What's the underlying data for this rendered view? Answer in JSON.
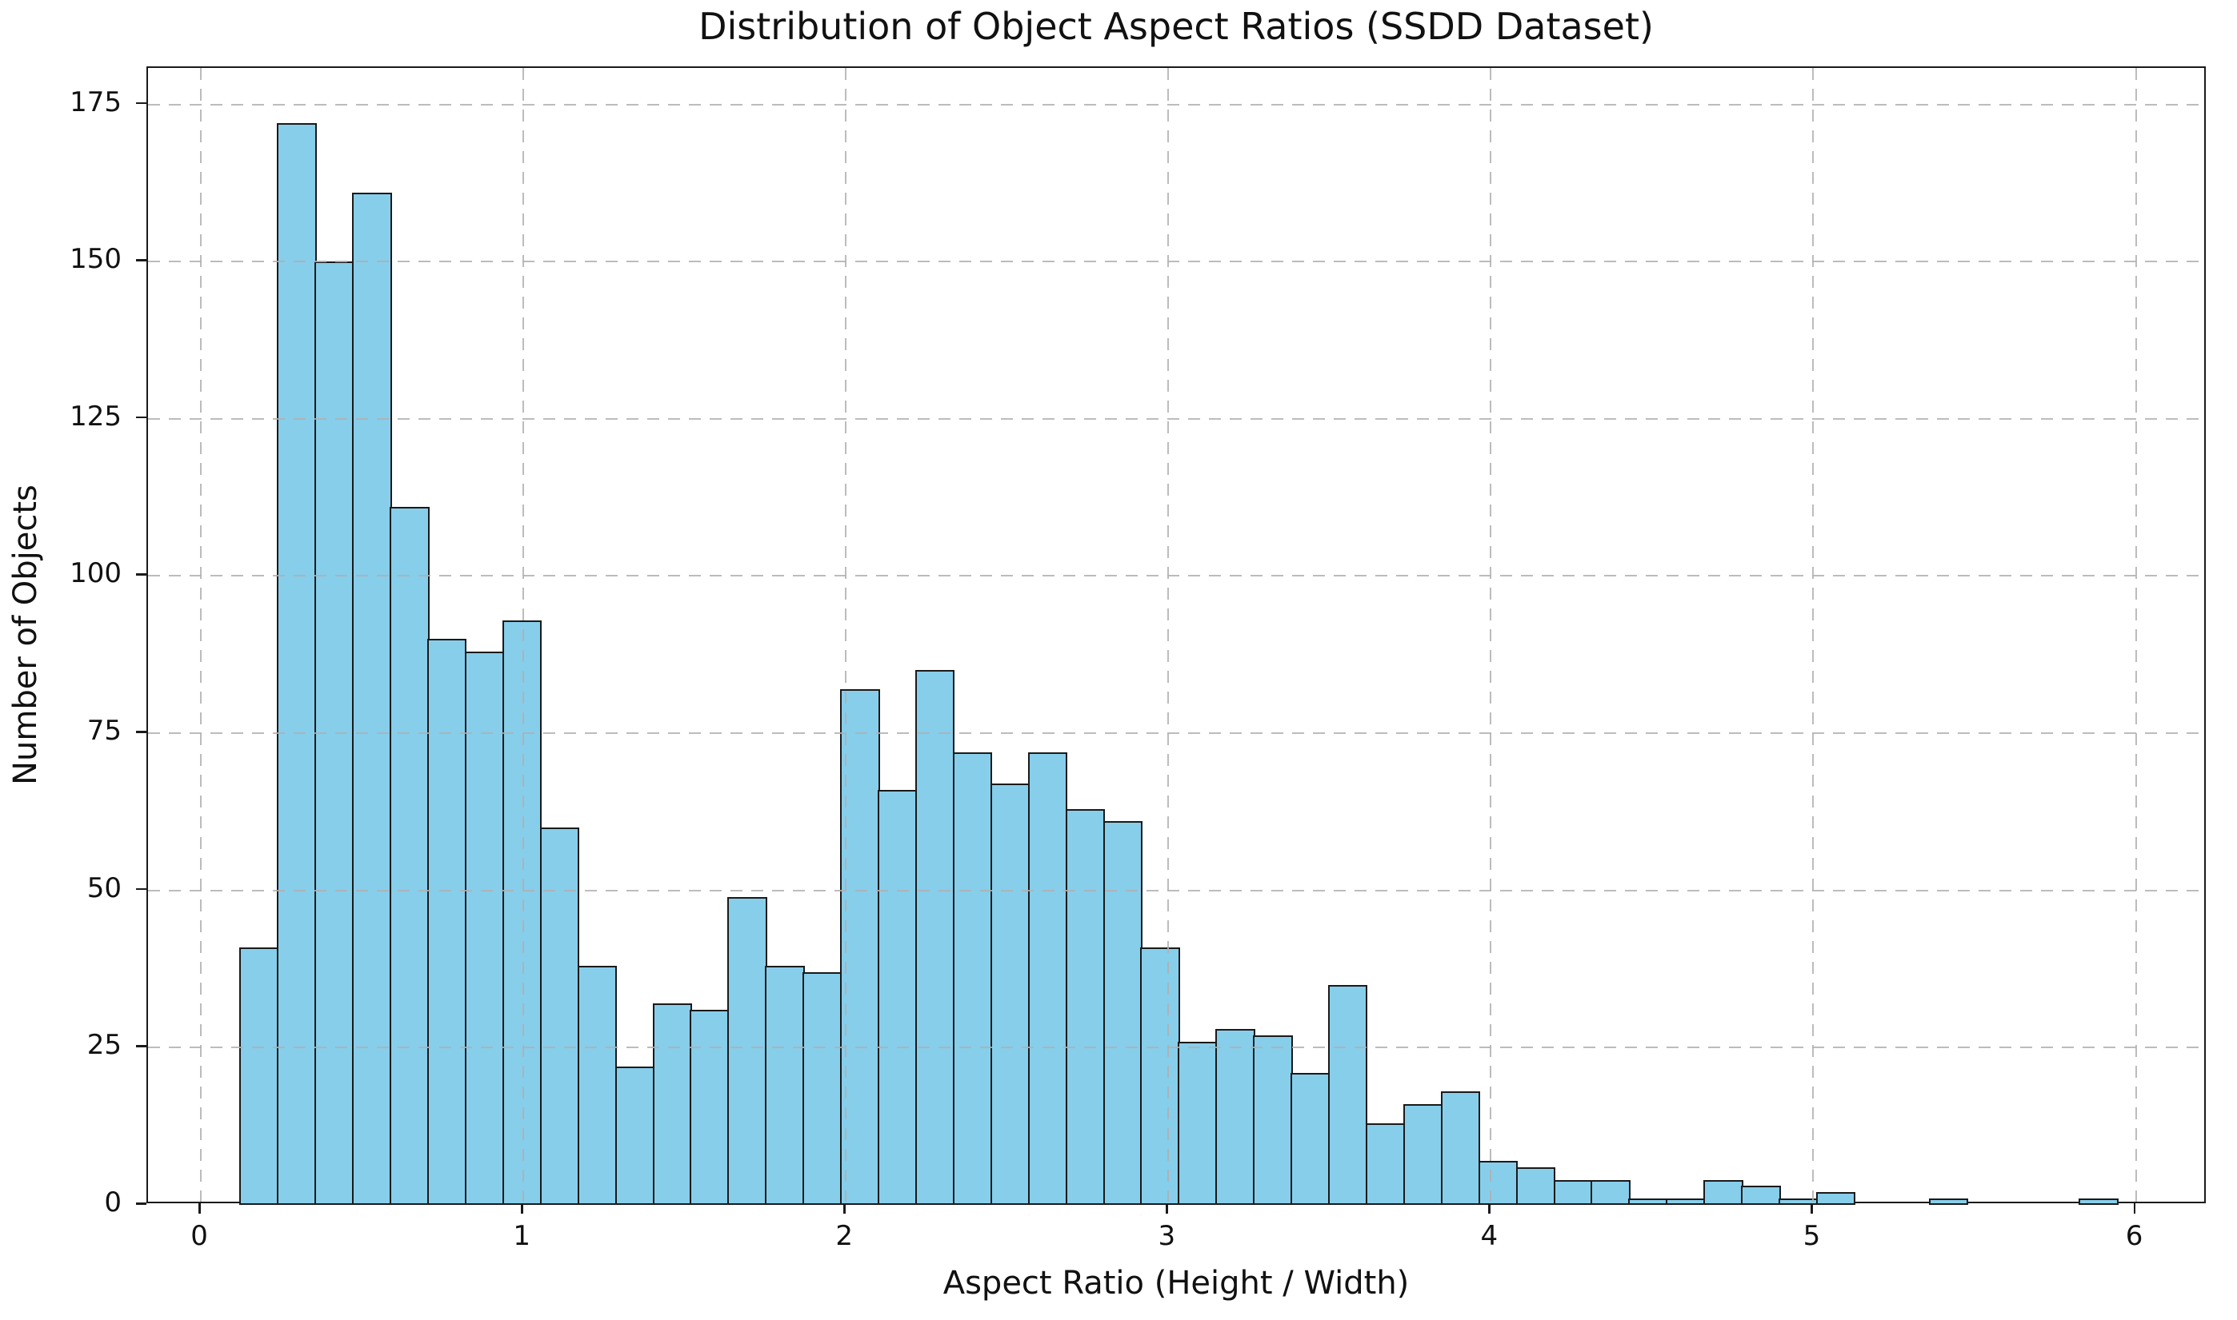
{
  "title": "Distribution of Object Aspect Ratios (SSDD Dataset)",
  "xlabel": "Aspect Ratio (Height / Width)",
  "ylabel": "Number of Objects",
  "x_ticks": [
    "0",
    "1",
    "2",
    "3",
    "4",
    "5",
    "6"
  ],
  "y_ticks": [
    "0",
    "25",
    "50",
    "75",
    "100",
    "125",
    "150",
    "175"
  ],
  "colors": {
    "bar_fill": "#87CEEB",
    "bar_edge": "#1a1a1a",
    "grid": "#b0b0b0",
    "spine": "#1a1a1a",
    "background": "#ffffff",
    "text": "#111111"
  },
  "chart_data": {
    "type": "bar",
    "subtype": "histogram",
    "title": "Distribution of Object Aspect Ratios (SSDD Dataset)",
    "xlabel": "Aspect Ratio (Height / Width)",
    "ylabel": "Number of Objects",
    "bin_start": 0.12,
    "bin_width": 0.1164,
    "counts": [
      41,
      172,
      150,
      161,
      111,
      90,
      88,
      93,
      60,
      38,
      22,
      32,
      31,
      49,
      38,
      37,
      82,
      66,
      85,
      72,
      67,
      72,
      63,
      61,
      41,
      26,
      28,
      27,
      21,
      35,
      13,
      16,
      18,
      7,
      6,
      4,
      4,
      1,
      1,
      4,
      3,
      1,
      2,
      0,
      0,
      1,
      0,
      0,
      0,
      1
    ],
    "x_tick_values": [
      0,
      1,
      2,
      3,
      4,
      5,
      6
    ],
    "y_tick_values": [
      0,
      25,
      50,
      75,
      100,
      125,
      150,
      175
    ],
    "xlim": [
      -0.164,
      6.222
    ],
    "ylim": [
      0,
      180.8
    ],
    "grid": "dashed-both-axes-above-bars",
    "legend": "none"
  }
}
